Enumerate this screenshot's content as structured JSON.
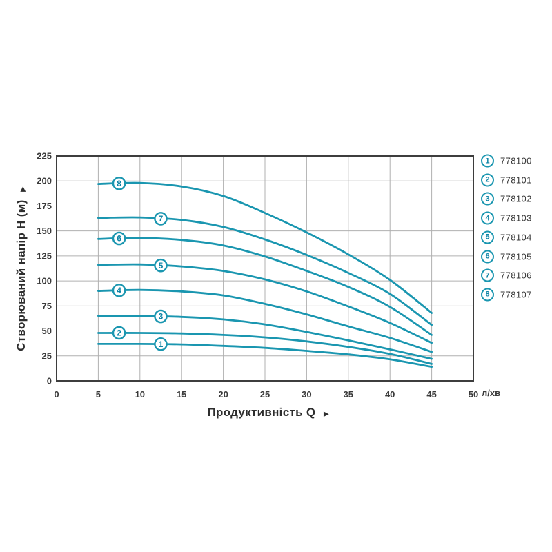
{
  "chart_data": {
    "type": "line",
    "title": "",
    "xlabel": "Продуктивність Q",
    "x_axis_arrow": "►",
    "ylabel": "Створюваний напір H (м)",
    "y_axis_arrow": "►",
    "x_unit": "л/хв",
    "xlim": [
      0,
      50
    ],
    "ylim": [
      0,
      225
    ],
    "x_ticks": [
      0,
      5,
      10,
      15,
      20,
      25,
      30,
      35,
      40,
      45,
      50
    ],
    "y_ticks": [
      0,
      25,
      50,
      75,
      100,
      125,
      150,
      175,
      200,
      225
    ],
    "grid": true,
    "legend_position": "right",
    "x": [
      5,
      10,
      15,
      20,
      25,
      30,
      35,
      40,
      45
    ],
    "series": [
      {
        "curve_label": "1",
        "name": "778100",
        "marker_q": 12.5,
        "values": [
          37,
          37,
          36.5,
          35,
          33,
          30,
          26.5,
          21.5,
          14
        ]
      },
      {
        "curve_label": "2",
        "name": "778101",
        "marker_q": 7.5,
        "values": [
          48,
          48,
          47.5,
          46,
          43.5,
          39.5,
          34,
          27,
          17
        ]
      },
      {
        "curve_label": "3",
        "name": "778102",
        "marker_q": 12.5,
        "values": [
          65,
          65,
          64,
          61.5,
          56.5,
          49,
          40.5,
          31.5,
          22
        ]
      },
      {
        "curve_label": "4",
        "name": "778103",
        "marker_q": 7.5,
        "values": [
          90,
          91,
          89.5,
          85.5,
          77,
          66.5,
          54.5,
          43,
          29
        ]
      },
      {
        "curve_label": "5",
        "name": "778104",
        "marker_q": 12.5,
        "values": [
          116,
          116.5,
          114.5,
          110,
          101.5,
          89.5,
          74.5,
          58,
          38
        ]
      },
      {
        "curve_label": "6",
        "name": "778105",
        "marker_q": 7.5,
        "values": [
          142,
          143,
          141,
          135.5,
          124.5,
          110,
          94,
          74,
          46
        ]
      },
      {
        "curve_label": "7",
        "name": "778106",
        "marker_q": 12.5,
        "values": [
          163,
          163.5,
          161,
          154,
          141.5,
          126,
          108,
          87,
          56
        ]
      },
      {
        "curve_label": "8",
        "name": "778107",
        "marker_q": 7.5,
        "values": [
          197,
          198,
          194.5,
          185,
          168,
          148.5,
          126.5,
          101,
          68
        ]
      }
    ]
  },
  "legend": {
    "items": [
      {
        "number": "1",
        "label": "778100"
      },
      {
        "number": "2",
        "label": "778101"
      },
      {
        "number": "3",
        "label": "778102"
      },
      {
        "number": "4",
        "label": "778103"
      },
      {
        "number": "5",
        "label": "778104"
      },
      {
        "number": "6",
        "label": "778105"
      },
      {
        "number": "7",
        "label": "778106"
      },
      {
        "number": "8",
        "label": "778107"
      }
    ]
  },
  "colors": {
    "curve": "#1a96b0",
    "marker_number": "#0d84a6",
    "grid": "#b0b0b0",
    "axis_border": "#3d3d3d",
    "text": "#3a3a3a",
    "background": "#ffffff"
  }
}
